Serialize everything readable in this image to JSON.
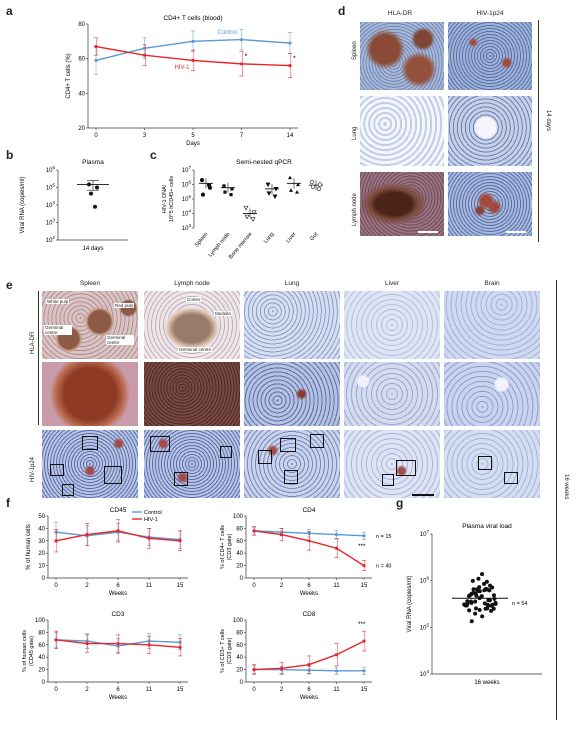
{
  "panel_letters": [
    "a",
    "b",
    "c",
    "d",
    "e",
    "f",
    "g"
  ],
  "chart_data": [
    {
      "id": "a",
      "type": "line",
      "title": "CD4+ T cells (blood)",
      "xlabel": "Days",
      "ylabel": "CD4+ T cells (%)",
      "categories": [
        "0",
        "3",
        "5",
        "7",
        "14"
      ],
      "ylim": [
        20,
        80
      ],
      "yticks": [
        "20",
        "40",
        "60",
        "80"
      ],
      "series": [
        {
          "name": "Control",
          "color": "#5b9bd5",
          "values": [
            59,
            66,
            70,
            71,
            69
          ],
          "err": [
            8,
            6,
            6,
            6,
            6
          ]
        },
        {
          "name": "HIV-1",
          "color": "#e8262b",
          "values": [
            67,
            62,
            59,
            57,
            56
          ],
          "err": [
            5,
            6,
            6,
            7,
            7
          ]
        }
      ],
      "annotations": [
        "*",
        "*"
      ]
    },
    {
      "id": "b",
      "type": "scatter",
      "title": "Plasma",
      "ylabel": "Viral RNA (copies/ml)",
      "xlabel": "14 days",
      "yticks": [
        "10^2",
        "10^3",
        "10^4",
        "10^5",
        "10^6"
      ],
      "ylog": [
        2,
        6
      ],
      "points": [
        150000,
        100000,
        45000,
        8000
      ],
      "mean": 150000,
      "sem": [
        70000,
        250000
      ]
    },
    {
      "id": "c",
      "type": "scatter",
      "title": "Semi-nested qPCR",
      "ylabel_line1": "HIV-1 DNA/",
      "ylabel_line2": "10^5 hCD45+ cells",
      "yticks": [
        "10^3",
        "10^4",
        "10^5",
        "10^6",
        "10^7"
      ],
      "ylog": [
        3,
        7
      ],
      "categories": [
        "Spleen",
        "Lymph node",
        "Bone marrow",
        "Lung",
        "Liver",
        "Gut"
      ],
      "groups": [
        [
          2000000,
          600000,
          200000,
          900000
        ],
        [
          800000,
          500000,
          300000,
          200000
        ],
        [
          25000,
          12000,
          6000,
          4000
        ],
        [
          1000000,
          500000,
          250000,
          150000
        ],
        [
          3000000,
          1000000,
          400000,
          300000
        ],
        [
          1500000,
          1000000,
          700000,
          500000
        ]
      ],
      "means": [
        1200000,
        600000,
        10000,
        500000,
        1200000,
        900000
      ]
    },
    {
      "id": "f1",
      "type": "line",
      "title": "CD45",
      "xlabel": "Weeks",
      "ylabel": "% of human cells",
      "categories": [
        "0",
        "2",
        "6",
        "11",
        "15"
      ],
      "ylim": [
        0,
        50
      ],
      "yticks": [
        "0",
        "10",
        "20",
        "30",
        "40",
        "50"
      ],
      "legend": [
        "Control",
        "HIV-1"
      ],
      "series": [
        {
          "name": "Control",
          "color": "#5b9bd5",
          "values": [
            37,
            34,
            37,
            33,
            31
          ],
          "err": [
            8,
            8,
            7,
            7,
            7
          ]
        },
        {
          "name": "HIV-1",
          "color": "#e8262b",
          "values": [
            30,
            35,
            38,
            32,
            30
          ],
          "err": [
            9,
            9,
            9,
            8,
            8
          ]
        }
      ]
    },
    {
      "id": "f2",
      "type": "line",
      "title": "CD4",
      "xlabel": "Weeks",
      "ylabel_line1": "% of CD4+ T cells",
      "ylabel_line2": "(CD3 gate)",
      "categories": [
        "0",
        "2",
        "6",
        "11",
        "15"
      ],
      "ylim": [
        0,
        100
      ],
      "yticks": [
        "0",
        "20",
        "40",
        "60",
        "80",
        "100"
      ],
      "labels": [
        "n = 15",
        "n = 40"
      ],
      "stars": "***",
      "series": [
        {
          "name": "Control",
          "color": "#5b9bd5",
          "values": [
            76,
            74,
            72,
            70,
            68
          ],
          "err": [
            5,
            6,
            6,
            6,
            6
          ]
        },
        {
          "name": "HIV-1",
          "color": "#e8262b",
          "values": [
            76,
            70,
            60,
            48,
            20
          ],
          "err": [
            7,
            10,
            15,
            15,
            8
          ]
        }
      ]
    },
    {
      "id": "f3",
      "type": "line",
      "title": "CD3",
      "xlabel": "Weeks",
      "ylabel_line1": "% of human cells",
      "ylabel_line2": "(CD45 gate)",
      "categories": [
        "0",
        "2",
        "6",
        "11",
        "15"
      ],
      "ylim": [
        0,
        100
      ],
      "yticks": [
        "0",
        "20",
        "40",
        "60",
        "80",
        "100"
      ],
      "series": [
        {
          "name": "Control",
          "color": "#5b9bd5",
          "values": [
            68,
            66,
            58,
            66,
            64
          ],
          "err": [
            12,
            12,
            12,
            12,
            12
          ]
        },
        {
          "name": "HIV-1",
          "color": "#e8262b",
          "values": [
            68,
            62,
            62,
            60,
            56
          ],
          "err": [
            14,
            14,
            14,
            14,
            14
          ]
        }
      ]
    },
    {
      "id": "f4",
      "type": "line",
      "title": "CD8",
      "xlabel": "Weeks",
      "ylabel_line1": "% of CD3+ T cells",
      "ylabel_line2": "(CD3 gate)",
      "categories": [
        "0",
        "2",
        "6",
        "11",
        "15"
      ],
      "ylim": [
        0,
        100
      ],
      "yticks": [
        "0",
        "20",
        "40",
        "60",
        "80",
        "100"
      ],
      "stars": "***",
      "series": [
        {
          "name": "Control",
          "color": "#5b9bd5",
          "values": [
            20,
            20,
            19,
            18,
            18
          ],
          "err": [
            6,
            6,
            6,
            6,
            6
          ]
        },
        {
          "name": "HIV-1",
          "color": "#e8262b",
          "values": [
            20,
            22,
            28,
            44,
            66
          ],
          "err": [
            8,
            10,
            14,
            18,
            16
          ]
        }
      ]
    },
    {
      "id": "g",
      "type": "scatter",
      "title": "Plasma viral load",
      "ylabel": "Viral RNA (copies/ml)",
      "xlabel": "16 weeks",
      "yticks": [
        "10^4",
        "10^5",
        "10^6",
        "10^7"
      ],
      "ylog": [
        4,
        7
      ],
      "n_label": "n = 54",
      "mean": 420000,
      "n_points": 54
    }
  ],
  "panel_d": {
    "columns": [
      "HLA-DR",
      "HIV-1p24"
    ],
    "rows": [
      "Spleen",
      "Lung",
      "Lymph node"
    ],
    "side_label": "14 days"
  },
  "panel_e": {
    "columns": [
      "Spleen",
      "Lymph node",
      "Lung",
      "Liver",
      "Brain"
    ],
    "row_labels": [
      "HLA-DR",
      "HIV-1p24"
    ],
    "spleen_labels": [
      "White pulp",
      "Red pulp",
      "Germinal centre",
      "Germinal centre"
    ],
    "node_labels": [
      "Cortex",
      "Medulla",
      "Germinal centre"
    ]
  },
  "side_label_bottom": "16 weeks",
  "colors": {
    "control": "#5b9bd5",
    "hiv": "#e8262b",
    "stain_brown": "#8a4a3a",
    "stain_blue": "#5f7fb8"
  }
}
